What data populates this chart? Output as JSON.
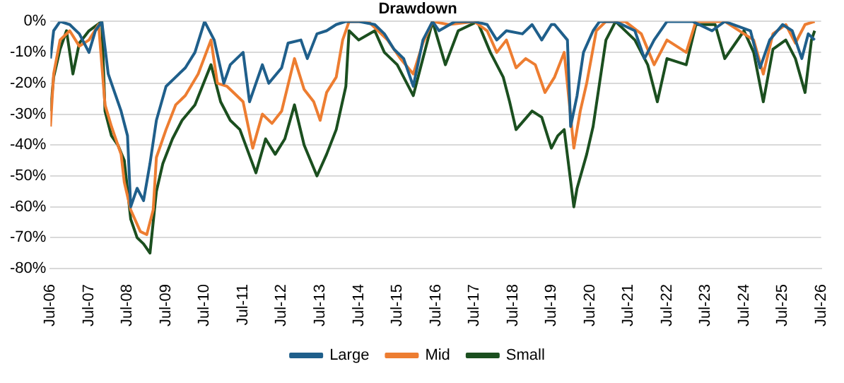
{
  "chart_data": {
    "type": "line",
    "title": "Drawdown",
    "xlim": [
      "2006-07",
      "2026-07"
    ],
    "xticks": [
      {
        "value": "2006-07",
        "label": "Jul-06"
      },
      {
        "value": "2007-07",
        "label": "Jul-07"
      },
      {
        "value": "2008-07",
        "label": "Jul-08"
      },
      {
        "value": "2009-07",
        "label": "Jul-09"
      },
      {
        "value": "2010-07",
        "label": "Jul-10"
      },
      {
        "value": "2011-07",
        "label": "Jul-11"
      },
      {
        "value": "2012-07",
        "label": "Jul-12"
      },
      {
        "value": "2013-07",
        "label": "Jul-13"
      },
      {
        "value": "2014-07",
        "label": "Jul-14"
      },
      {
        "value": "2015-07",
        "label": "Jul-15"
      },
      {
        "value": "2016-07",
        "label": "Jul-16"
      },
      {
        "value": "2017-07",
        "label": "Jul-17"
      },
      {
        "value": "2018-07",
        "label": "Jul-18"
      },
      {
        "value": "2019-07",
        "label": "Jul-19"
      },
      {
        "value": "2020-07",
        "label": "Jul-20"
      },
      {
        "value": "2021-07",
        "label": "Jul-21"
      },
      {
        "value": "2022-07",
        "label": "Jul-22"
      },
      {
        "value": "2023-07",
        "label": "Jul-23"
      },
      {
        "value": "2024-07",
        "label": "Jul-24"
      },
      {
        "value": "2025-07",
        "label": "Jul-25"
      },
      {
        "value": "2026-07",
        "label": "Jul-26"
      }
    ],
    "ylim": [
      -80,
      0
    ],
    "yticks": [
      {
        "value": 0,
        "label": "0%"
      },
      {
        "value": -10,
        "label": "-10%"
      },
      {
        "value": -20,
        "label": "-20%"
      },
      {
        "value": -30,
        "label": "-30%"
      },
      {
        "value": -40,
        "label": "-40%"
      },
      {
        "value": -50,
        "label": "-50%"
      },
      {
        "value": -60,
        "label": "-60%"
      },
      {
        "value": -70,
        "label": "-70%"
      },
      {
        "value": -80,
        "label": "-80%"
      }
    ],
    "grid": "y",
    "legend": "bottom",
    "series": [
      {
        "name": "Large",
        "color": "#1f5f8b",
        "x": [
          "2006-07",
          "2006-08",
          "2006-10",
          "2007-01",
          "2007-04",
          "2007-07",
          "2007-09",
          "2007-11",
          "2008-01",
          "2008-02",
          "2008-05",
          "2008-07",
          "2008-08",
          "2008-10",
          "2008-12",
          "2009-02",
          "2009-04",
          "2009-07",
          "2009-10",
          "2010-01",
          "2010-04",
          "2010-07",
          "2010-10",
          "2011-01",
          "2011-03",
          "2011-07",
          "2011-09",
          "2012-01",
          "2012-03",
          "2012-07",
          "2012-09",
          "2013-01",
          "2013-03",
          "2013-06",
          "2013-09",
          "2013-12",
          "2014-03",
          "2014-07",
          "2014-12",
          "2015-03",
          "2015-06",
          "2015-09",
          "2015-12",
          "2016-03",
          "2016-06",
          "2016-08",
          "2017-01",
          "2017-07",
          "2017-11",
          "2018-02",
          "2018-05",
          "2018-10",
          "2019-01",
          "2019-04",
          "2019-07",
          "2019-08",
          "2019-12",
          "2020-01",
          "2020-03",
          "2020-05",
          "2020-08",
          "2020-10",
          "2021-03",
          "2021-09",
          "2021-12",
          "2022-03",
          "2022-07",
          "2023-03",
          "2023-09",
          "2024-01",
          "2024-09",
          "2024-12",
          "2025-03",
          "2025-07",
          "2025-10",
          "2026-01",
          "2026-03",
          "2026-05"
        ],
        "values": [
          -12,
          -3,
          0,
          -1,
          -4,
          -10,
          -3,
          0,
          -17,
          -20,
          -29,
          -37,
          -60,
          -54,
          -58,
          -46,
          -32,
          -21,
          -18,
          -15,
          -10,
          0,
          -6,
          -20,
          -14,
          -10,
          -26,
          -14,
          -20,
          -15,
          -7,
          -6,
          -12,
          -4,
          -3,
          -1,
          0,
          0,
          -1,
          -4,
          -9,
          -12,
          -21,
          -6,
          0,
          -3,
          0,
          0,
          -1,
          -6,
          -3,
          -4,
          -1,
          -6,
          -1,
          -1,
          -6,
          -34,
          -24,
          -10,
          -3,
          0,
          0,
          -3,
          -12,
          -6,
          0,
          0,
          -3,
          0,
          -3,
          -15,
          -6,
          -1,
          -3,
          -12,
          -4,
          -6
        ]
      },
      {
        "name": "Mid",
        "color": "#ed7d31",
        "x": [
          "2006-07",
          "2006-08",
          "2006-10",
          "2007-01",
          "2007-04",
          "2007-07",
          "2007-10",
          "2007-12",
          "2008-02",
          "2008-05",
          "2008-06",
          "2008-08",
          "2008-11",
          "2009-01",
          "2009-03",
          "2009-04",
          "2009-07",
          "2009-10",
          "2010-01",
          "2010-05",
          "2010-09",
          "2010-11",
          "2011-02",
          "2011-05",
          "2011-07",
          "2011-10",
          "2012-01",
          "2012-04",
          "2012-07",
          "2012-11",
          "2013-02",
          "2013-05",
          "2013-07",
          "2013-09",
          "2013-12",
          "2014-02",
          "2014-04",
          "2014-10",
          "2015-04",
          "2015-08",
          "2015-12",
          "2016-03",
          "2016-06",
          "2016-11",
          "2017-07",
          "2017-11",
          "2018-02",
          "2018-05",
          "2018-08",
          "2018-11",
          "2019-02",
          "2019-05",
          "2019-08",
          "2019-11",
          "2020-02",
          "2020-04",
          "2020-06",
          "2020-09",
          "2020-12",
          "2021-06",
          "2021-11",
          "2022-03",
          "2022-07",
          "2023-01",
          "2023-04",
          "2024-01",
          "2024-10",
          "2025-01",
          "2025-04",
          "2025-08",
          "2025-11",
          "2026-02",
          "2026-05"
        ],
        "values": [
          -34,
          -17,
          -6,
          -3,
          -8,
          -6,
          -1,
          -27,
          -34,
          -43,
          -52,
          -61,
          -68,
          -69,
          -61,
          -44,
          -35,
          -27,
          -24,
          -17,
          -6,
          -20,
          -21,
          -24,
          -26,
          -41,
          -30,
          -33,
          -29,
          -12,
          -22,
          -26,
          -32,
          -23,
          -18,
          -6,
          0,
          0,
          -6,
          -12,
          -17,
          -7,
          0,
          -1,
          0,
          -3,
          -10,
          -6,
          -15,
          -12,
          -14,
          -23,
          -18,
          -10,
          -41,
          -29,
          -20,
          -3,
          0,
          0,
          -4,
          -14,
          -6,
          -10,
          0,
          0,
          -6,
          -17,
          -4,
          -1,
          -7,
          -1,
          0
        ]
      },
      {
        "name": "Small",
        "color": "#1b4f1f",
        "x": [
          "2006-07",
          "2006-08",
          "2006-10",
          "2006-12",
          "2007-02",
          "2007-04",
          "2007-07",
          "2007-11",
          "2007-12",
          "2008-02",
          "2008-04",
          "2008-06",
          "2008-08",
          "2008-10",
          "2008-12",
          "2009-02",
          "2009-04",
          "2009-06",
          "2009-09",
          "2009-12",
          "2010-04",
          "2010-09",
          "2010-12",
          "2011-03",
          "2011-06",
          "2011-11",
          "2012-02",
          "2012-05",
          "2012-08",
          "2012-11",
          "2013-02",
          "2013-06",
          "2013-09",
          "2013-12",
          "2014-03",
          "2014-04",
          "2014-07",
          "2014-12",
          "2015-03",
          "2015-07",
          "2015-12",
          "2016-03",
          "2016-06",
          "2016-10",
          "2017-02",
          "2017-08",
          "2017-12",
          "2018-04",
          "2018-06",
          "2018-08",
          "2019-01",
          "2019-04",
          "2019-07",
          "2019-09",
          "2019-11",
          "2020-02",
          "2020-03",
          "2020-06",
          "2020-08",
          "2020-10",
          "2020-12",
          "2021-03",
          "2021-09",
          "2022-01",
          "2022-04",
          "2022-07",
          "2023-01",
          "2023-04",
          "2023-10",
          "2024-01",
          "2024-07",
          "2024-10",
          "2025-01",
          "2025-04",
          "2025-08",
          "2025-11",
          "2026-02",
          "2026-04",
          "2026-05"
        ],
        "values": [
          -29,
          -18,
          -9,
          -3,
          -17,
          -7,
          -3,
          0,
          -29,
          -37,
          -40,
          -45,
          -64,
          -70,
          -72,
          -75,
          -55,
          -46,
          -38,
          -32,
          -27,
          -14,
          -26,
          -32,
          -35,
          -49,
          -38,
          -43,
          -38,
          -27,
          -40,
          -50,
          -43,
          -35,
          -21,
          -3,
          -6,
          -3,
          -10,
          -14,
          -24,
          -12,
          0,
          -14,
          -3,
          0,
          -10,
          -18,
          -26,
          -35,
          -29,
          -31,
          -41,
          -37,
          -35,
          -60,
          -54,
          -43,
          -34,
          -20,
          -6,
          0,
          -6,
          -14,
          -26,
          -12,
          -14,
          -1,
          -1,
          -12,
          -3,
          -10,
          -26,
          -9,
          -6,
          -12,
          -23,
          -6,
          -3
        ]
      }
    ]
  }
}
